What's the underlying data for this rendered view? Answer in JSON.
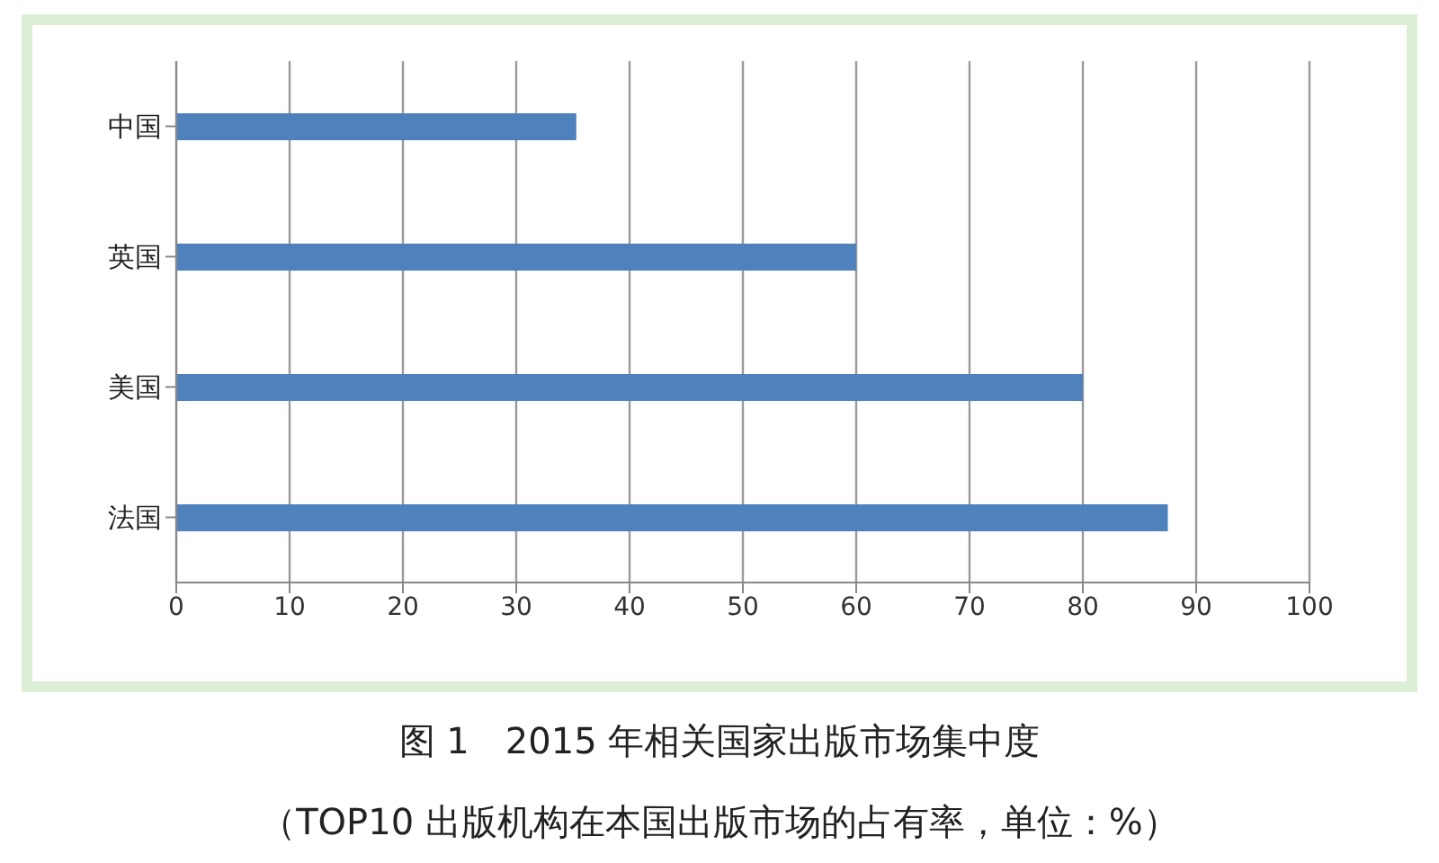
{
  "chart_data": {
    "type": "bar",
    "orientation": "horizontal",
    "title": "图 1　2015 年相关国家出版市场集中度",
    "subtitle": "（TOP10 出版机构在本国出版市场的占有率，单位：%）",
    "categories": [
      "中国",
      "英国",
      "美国",
      "法国"
    ],
    "values": [
      35.3,
      60,
      80,
      87.5
    ],
    "color": "#4f81bd",
    "xlim": [
      0,
      100
    ],
    "xticks": [
      0,
      10,
      20,
      30,
      40,
      50,
      60,
      70,
      80,
      90,
      100
    ],
    "grid": "x"
  }
}
